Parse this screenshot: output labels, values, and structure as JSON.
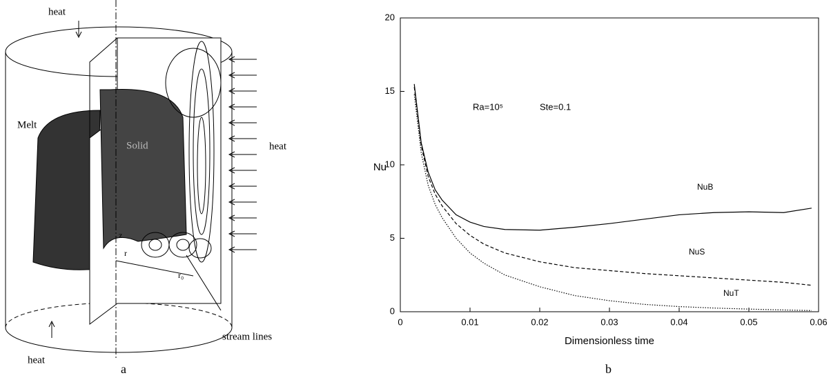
{
  "figure_a": {
    "labels": [
      "heat",
      "Melt",
      "Solid",
      "heat",
      "z",
      "r",
      "r₀",
      "stream lines",
      "heat"
    ]
  },
  "captions": [
    "a",
    "b"
  ],
  "chart_data": {
    "type": "line",
    "x_label": "Dimensionless time",
    "y_label": "Nu",
    "annotations": [
      "Ra=10⁵",
      "Ste=0.1"
    ],
    "x": [
      0.002,
      0.003,
      0.004,
      0.005,
      0.006,
      0.008,
      0.01,
      0.012,
      0.015,
      0.02,
      0.025,
      0.03,
      0.035,
      0.04,
      0.045,
      0.05,
      0.055,
      0.059
    ],
    "series": [
      {
        "name": "NuB",
        "color": "#000000",
        "dash": "solid",
        "values": [
          15.5,
          11.5,
          9.5,
          8.3,
          7.6,
          6.6,
          6.1,
          5.8,
          5.6,
          5.55,
          5.75,
          6.0,
          6.3,
          6.6,
          6.75,
          6.8,
          6.75,
          7.05
        ]
      },
      {
        "name": "NuS",
        "color": "#000000",
        "dash": "dashed",
        "values": [
          15.3,
          11.3,
          9.2,
          8.0,
          7.2,
          6.0,
          5.2,
          4.6,
          4.0,
          3.4,
          3.0,
          2.8,
          2.6,
          2.45,
          2.3,
          2.15,
          2.0,
          1.8
        ]
      },
      {
        "name": "NuT",
        "color": "#000000",
        "dash": "dotted",
        "values": [
          14.8,
          10.8,
          8.6,
          7.3,
          6.4,
          5.0,
          4.0,
          3.3,
          2.5,
          1.7,
          1.1,
          0.75,
          0.5,
          0.35,
          0.25,
          0.18,
          0.12,
          0.08
        ]
      }
    ],
    "xlim": [
      0,
      0.06
    ],
    "xticks": [
      0,
      0.01,
      0.02,
      0.03,
      0.04,
      0.05,
      0.06
    ],
    "ylim": [
      0,
      20
    ],
    "yticks": [
      0,
      5,
      10,
      15,
      20
    ],
    "grid": false
  }
}
